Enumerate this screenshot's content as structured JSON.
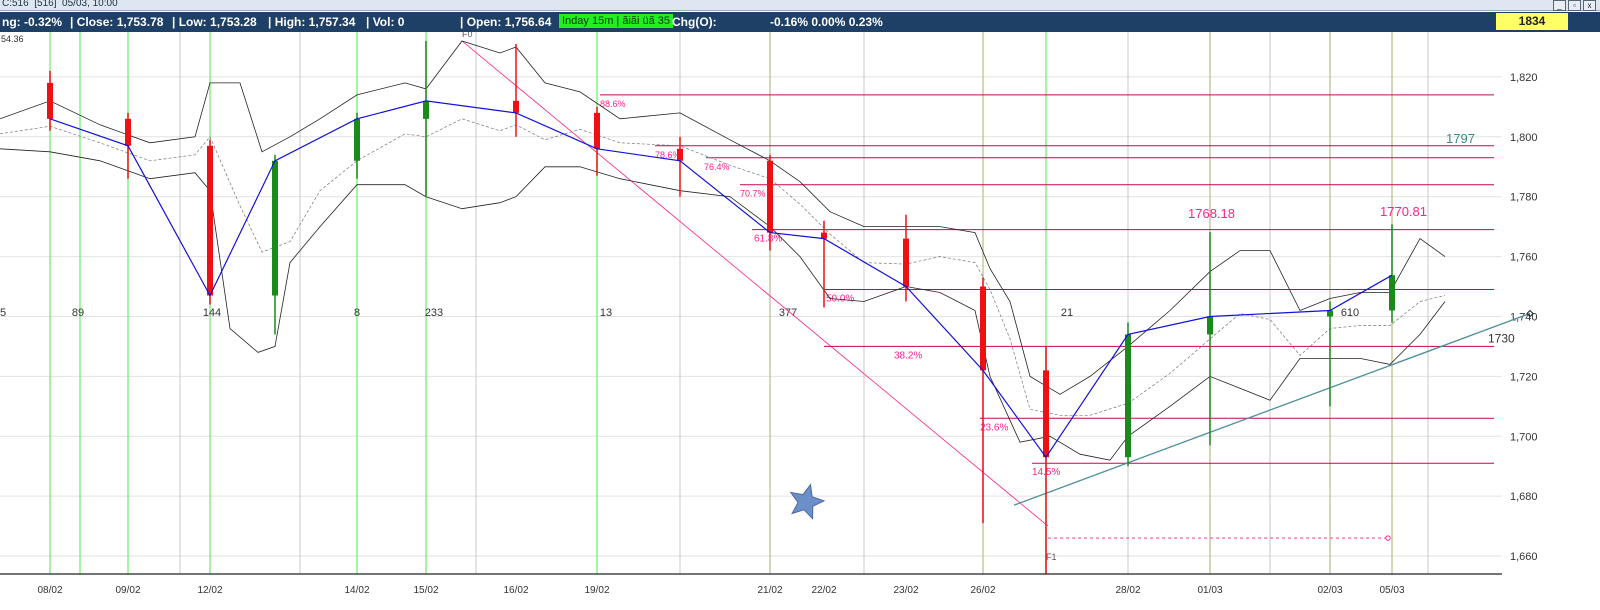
{
  "window": {
    "title": "C:516  [516]  05/03, 10:00",
    "buttons": [
      "_",
      "▫",
      "x"
    ]
  },
  "infobar": {
    "change": "ng: -0.32%",
    "close": "| Close: 1,753.78",
    "low": "| Low: 1,753.28",
    "high": "| High: 1,757.34",
    "vol": "| Vol: 0",
    "open": "| Open: 1,756.64",
    "interval": "Inday 15m | ãiãi üã 35",
    "chg_label": "Chg(O):",
    "chg_values": "-0.16% 0.00% 0.23%",
    "price_box": "1834"
  },
  "chart_data": {
    "type": "candlestick",
    "title": "",
    "xlabel": "",
    "ylabel": "",
    "ylim": [
      1654,
      1835
    ],
    "y_ticks": [
      1660,
      1680,
      1700,
      1720,
      1740,
      1760,
      1780,
      1800,
      1820
    ],
    "y_tick_labels": [
      "1,660",
      "1,680",
      "1,700",
      "1,720",
      "1,740",
      "1,760",
      "1,780",
      "1,800",
      "1,820"
    ],
    "x_dates": [
      "08/02",
      "09/02",
      "12/02",
      "14/02",
      "15/02",
      "16/02",
      "19/02",
      "21/02",
      "22/02",
      "23/02",
      "26/02",
      "28/02",
      "01/03",
      "02/03",
      "05/03"
    ],
    "corner_label": "54.36",
    "fibonacci_time_counts": [
      "5",
      "89",
      "144",
      "8",
      "233",
      "13",
      "377",
      "21",
      "610"
    ],
    "fibonacci_levels": [
      {
        "label": "88.6%",
        "value": 1814
      },
      {
        "label": "78.6%",
        "value": 1797
      },
      {
        "label": "76.4%",
        "value": 1793
      },
      {
        "label": "70.7%",
        "value": 1784
      },
      {
        "label": "61.8%",
        "value": 1769
      },
      {
        "label": "50.0%",
        "value": 1749
      },
      {
        "label": "38.2%",
        "value": 1730
      },
      {
        "label": "23.6%",
        "value": 1706
      },
      {
        "label": "14.5%",
        "value": 1691
      }
    ],
    "fib_anchor_labels": [
      "F0",
      "F1"
    ],
    "annotations": [
      {
        "text": "1768.18",
        "x": "01/03",
        "y": 1768.18
      },
      {
        "text": "1770.81",
        "x": "05/03",
        "y": 1770.81
      },
      {
        "text": "1797",
        "y": 1797
      },
      {
        "text": "1730",
        "y": 1730
      }
    ],
    "series": [
      {
        "date": "08/02",
        "open": 1818,
        "high": 1822,
        "low": 1802,
        "close": 1806
      },
      {
        "date": "09/02",
        "open": 1806,
        "high": 1808,
        "low": 1786,
        "close": 1797
      },
      {
        "date": "12/02",
        "open": 1797,
        "high": 1799,
        "low": 1744,
        "close": 1747
      },
      {
        "date": "13/02",
        "open": 1747,
        "high": 1794,
        "low": 1734,
        "close": 1792
      },
      {
        "date": "14/02",
        "open": 1792,
        "high": 1808,
        "low": 1786,
        "close": 1806
      },
      {
        "date": "15/02",
        "open": 1806,
        "high": 1832,
        "low": 1780,
        "close": 1812
      },
      {
        "date": "16/02",
        "open": 1812,
        "high": 1831,
        "low": 1800,
        "close": 1808
      },
      {
        "date": "19/02",
        "open": 1808,
        "high": 1810,
        "low": 1787,
        "close": 1796
      },
      {
        "date": "20/02",
        "open": 1796,
        "high": 1800,
        "low": 1780,
        "close": 1792
      },
      {
        "date": "21/02",
        "open": 1792,
        "high": 1794,
        "low": 1762,
        "close": 1768
      },
      {
        "date": "22/02",
        "open": 1768,
        "high": 1772,
        "low": 1743,
        "close": 1766
      },
      {
        "date": "23/02",
        "open": 1766,
        "high": 1774,
        "low": 1745,
        "close": 1750
      },
      {
        "date": "26/02",
        "open": 1750,
        "high": 1753,
        "low": 1671,
        "close": 1722
      },
      {
        "date": "27/02",
        "open": 1722,
        "high": 1730,
        "low": 1654,
        "close": 1693
      },
      {
        "date": "28/02",
        "open": 1693,
        "high": 1738,
        "low": 1690,
        "close": 1734
      },
      {
        "date": "01/03",
        "open": 1734,
        "high": 1768.18,
        "low": 1697,
        "close": 1740
      },
      {
        "date": "02/03",
        "open": 1740,
        "high": 1745,
        "low": 1710,
        "close": 1742
      },
      {
        "date": "05/03",
        "open": 1742,
        "high": 1770.81,
        "low": 1738,
        "close": 1753.78
      }
    ],
    "colors": {
      "up": "#1a8a1a",
      "down": "#ee1111",
      "neutral": "#1111dd",
      "fib": "#cc0055",
      "fib_text": "#ff2288",
      "trendline": "#4c8e9a",
      "green_vline": "#7cf07c",
      "gray_vline": "#c8c8c8",
      "olive_vline": "#b9b98a",
      "band": "#222222",
      "star": "#6d8fc8"
    },
    "grid": true,
    "legend": "none"
  }
}
